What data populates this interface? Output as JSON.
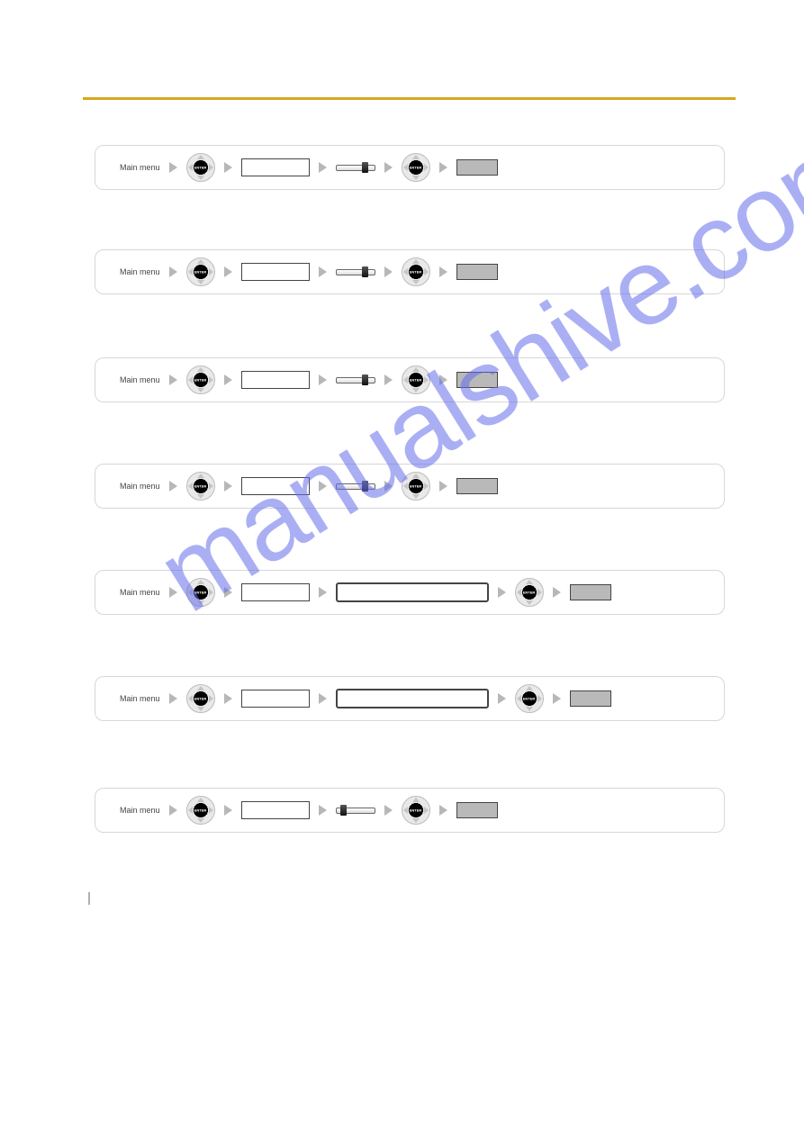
{
  "rule_color": "#d5a81e",
  "watermark_text": "manualshive.com",
  "flows": [
    {
      "prefix": "Main menu",
      "steps": [
        {
          "type": "arrow"
        },
        {
          "type": "enter"
        },
        {
          "type": "arrow"
        },
        {
          "type": "lcd",
          "variant": "small",
          "label": ""
        },
        {
          "type": "arrow"
        },
        {
          "type": "slider",
          "knob_pos": 0.8
        },
        {
          "type": "arrow"
        },
        {
          "type": "enter"
        },
        {
          "type": "arrow"
        },
        {
          "type": "lcd",
          "variant": "dark",
          "label": ""
        }
      ]
    },
    {
      "prefix": "Main menu",
      "steps": [
        {
          "type": "arrow"
        },
        {
          "type": "enter"
        },
        {
          "type": "arrow"
        },
        {
          "type": "lcd",
          "variant": "small",
          "label": ""
        },
        {
          "type": "arrow"
        },
        {
          "type": "slider",
          "knob_pos": 0.8
        },
        {
          "type": "arrow"
        },
        {
          "type": "enter"
        },
        {
          "type": "arrow"
        },
        {
          "type": "lcd",
          "variant": "dark",
          "label": ""
        }
      ]
    },
    {
      "prefix": "Main menu",
      "steps": [
        {
          "type": "arrow"
        },
        {
          "type": "enter"
        },
        {
          "type": "arrow"
        },
        {
          "type": "lcd",
          "variant": "small",
          "label": ""
        },
        {
          "type": "arrow"
        },
        {
          "type": "slider",
          "knob_pos": 0.8
        },
        {
          "type": "arrow"
        },
        {
          "type": "enter"
        },
        {
          "type": "arrow"
        },
        {
          "type": "lcd",
          "variant": "dark",
          "label": ""
        }
      ]
    },
    {
      "prefix": "Main menu",
      "steps": [
        {
          "type": "arrow"
        },
        {
          "type": "enter"
        },
        {
          "type": "arrow"
        },
        {
          "type": "lcd",
          "variant": "small",
          "label": ""
        },
        {
          "type": "arrow"
        },
        {
          "type": "slider",
          "knob_pos": 0.8
        },
        {
          "type": "arrow"
        },
        {
          "type": "enter"
        },
        {
          "type": "arrow"
        },
        {
          "type": "lcd",
          "variant": "dark",
          "label": ""
        }
      ]
    },
    {
      "prefix": "Main menu",
      "steps": [
        {
          "type": "arrow"
        },
        {
          "type": "enter"
        },
        {
          "type": "arrow"
        },
        {
          "type": "lcd",
          "variant": "small",
          "label": ""
        },
        {
          "type": "arrow"
        },
        {
          "type": "lcd",
          "variant": "wide",
          "label": ""
        },
        {
          "type": "arrow"
        },
        {
          "type": "enter"
        },
        {
          "type": "arrow"
        },
        {
          "type": "lcd",
          "variant": "dark",
          "label": ""
        }
      ]
    },
    {
      "prefix": "Main menu",
      "steps": [
        {
          "type": "arrow"
        },
        {
          "type": "enter"
        },
        {
          "type": "arrow"
        },
        {
          "type": "lcd",
          "variant": "small",
          "label": ""
        },
        {
          "type": "arrow"
        },
        {
          "type": "lcd",
          "variant": "wide",
          "label": ""
        },
        {
          "type": "arrow"
        },
        {
          "type": "enter"
        },
        {
          "type": "arrow"
        },
        {
          "type": "lcd",
          "variant": "dark",
          "label": ""
        }
      ]
    },
    {
      "prefix": "Main menu",
      "steps": [
        {
          "type": "arrow"
        },
        {
          "type": "enter"
        },
        {
          "type": "arrow"
        },
        {
          "type": "lcd",
          "variant": "small",
          "label": ""
        },
        {
          "type": "arrow"
        },
        {
          "type": "slider",
          "knob_pos": 0.15
        },
        {
          "type": "arrow"
        },
        {
          "type": "enter"
        },
        {
          "type": "arrow"
        },
        {
          "type": "lcd",
          "variant": "dark",
          "label": ""
        }
      ]
    }
  ],
  "spacers": [
    48,
    52,
    50,
    50,
    50,
    56,
    50
  ],
  "footer_page": "",
  "footer_text": ""
}
